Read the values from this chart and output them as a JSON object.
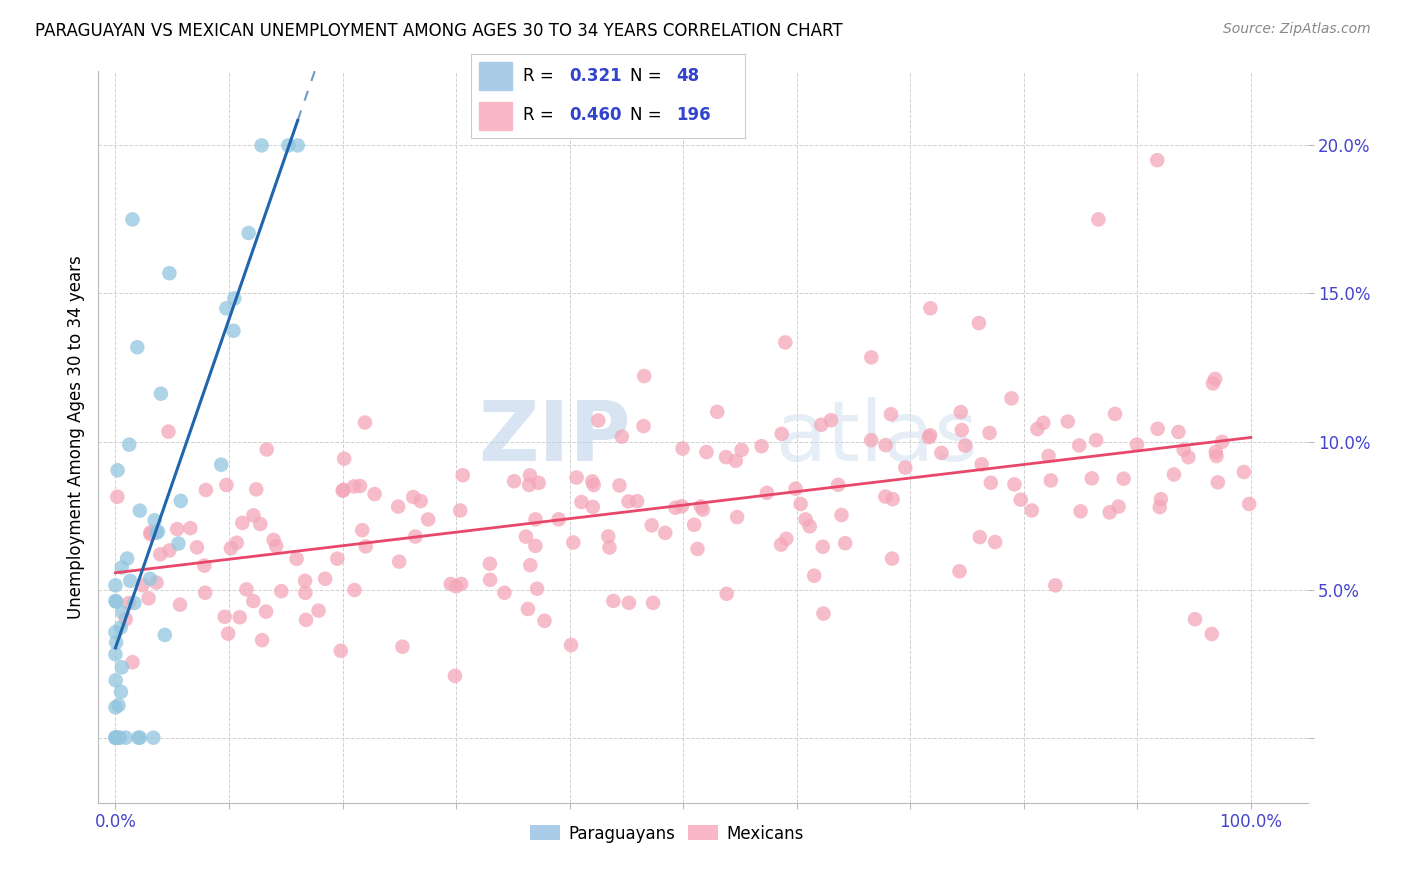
{
  "title": "PARAGUAYAN VS MEXICAN UNEMPLOYMENT AMONG AGES 30 TO 34 YEARS CORRELATION CHART",
  "source": "Source: ZipAtlas.com",
  "ylabel": "Unemployment Among Ages 30 to 34 years",
  "xlim": [
    -0.015,
    1.05
  ],
  "ylim": [
    -0.022,
    0.225
  ],
  "paraguayan_color": "#92c5de",
  "mexican_color": "#f4a6b8",
  "paraguayan_line_color": "#2166ac",
  "mexican_line_color": "#e8476a",
  "paraguayan_R": "0.321",
  "paraguayan_N": "48",
  "mexican_R": "0.460",
  "mexican_N": "196",
  "legend_label_paraguayan": "Paraguayans",
  "legend_label_mexican": "Mexicans",
  "watermark_zip": "ZIP",
  "watermark_atlas": "atlas",
  "background_color": "#ffffff",
  "tick_color": "#4444cc",
  "title_color": "#000000",
  "ylabel_color": "#000000"
}
